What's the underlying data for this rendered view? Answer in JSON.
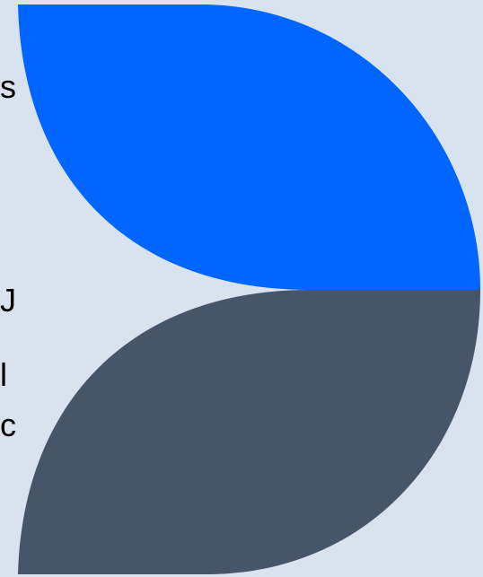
{
  "text_fragments": [
    "s",
    "J",
    "l",
    "c"
  ],
  "colors": {
    "background": "#d9e3ef",
    "top_leaf": "#0066ff",
    "bottom_leaf": "#475569",
    "text": "#000000"
  }
}
